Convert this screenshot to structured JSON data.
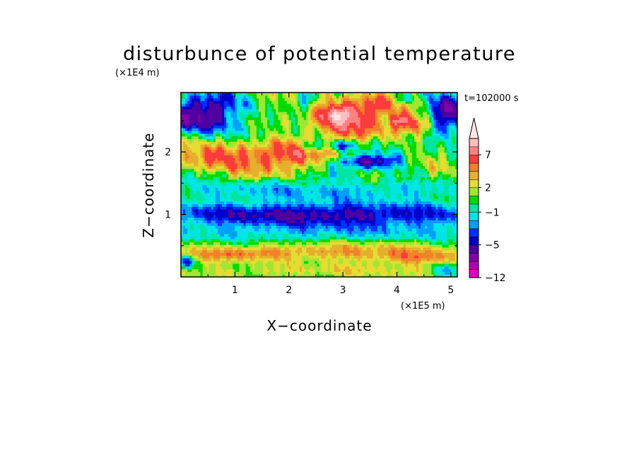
{
  "chart_data": {
    "type": "heatmap",
    "title": "disturbunce of potential temperature",
    "xlabel": "X−coordinate",
    "ylabel": "Z−coordinate",
    "x_scale_label": "(×1E5 m)",
    "y_scale_label": "(×1E4 m)",
    "time_label": "t=102000 s",
    "xlim": [
      0,
      5.12
    ],
    "ylim": [
      0,
      2.95
    ],
    "x_ticks": [
      {
        "value": 1,
        "label": "1"
      },
      {
        "value": 2,
        "label": "2"
      },
      {
        "value": 3,
        "label": "3"
      },
      {
        "value": 4,
        "label": "4"
      },
      {
        "value": 5,
        "label": "5"
      }
    ],
    "y_ticks": [
      {
        "value": 1,
        "label": "1"
      },
      {
        "value": 2,
        "label": "2"
      }
    ],
    "colorbar": {
      "min": -12,
      "max": 11,
      "extend_max": true,
      "levels": [
        -12,
        -11,
        -9,
        -7,
        -5,
        -4,
        -3,
        -2,
        -1,
        0,
        1,
        2,
        3,
        4,
        5,
        7,
        9,
        11
      ],
      "colors": [
        "#e600c8",
        "#b400b4",
        "#8200aa",
        "#5000a0",
        "#0000c8",
        "#0030ff",
        "#00a0ff",
        "#00e6e6",
        "#00e6a0",
        "#00dc00",
        "#a0e632",
        "#e6dc32",
        "#e6af2d",
        "#f08228",
        "#fa3c3c",
        "#ff8282",
        "#ffbebe"
      ],
      "extend_color": "#ffe6e6",
      "labeled_levels": [
        {
          "value": -12,
          "label": "−12"
        },
        {
          "value": -5,
          "label": "−5"
        },
        {
          "value": -1,
          "label": "−1"
        },
        {
          "value": 2,
          "label": "2"
        },
        {
          "value": 7,
          "label": "7"
        }
      ]
    },
    "field": {
      "nx": 128,
      "nz": 68,
      "background": 0.5,
      "features": [
        {
          "x": 2.95,
          "z": 2.55,
          "sx": 0.5,
          "sz": 0.22,
          "amp": 6.0
        },
        {
          "x": 2.9,
          "z": 2.6,
          "sx": 0.18,
          "sz": 0.08,
          "amp": 4.5
        },
        {
          "x": 3.5,
          "z": 2.75,
          "sx": 0.3,
          "sz": 0.18,
          "amp": 4.0
        },
        {
          "x": 4.3,
          "z": 2.45,
          "sx": 0.3,
          "sz": 0.12,
          "amp": 5.5
        },
        {
          "x": 4.05,
          "z": 2.5,
          "sx": 0.12,
          "sz": 0.06,
          "amp": 3.5
        },
        {
          "x": 1.6,
          "z": 1.95,
          "sx": 0.8,
          "sz": 0.18,
          "amp": 5.5
        },
        {
          "x": 0.35,
          "z": 1.9,
          "sx": 0.35,
          "sz": 0.15,
          "amp": 3.5
        },
        {
          "x": 4.2,
          "z": 2.85,
          "sx": 0.3,
          "sz": 0.1,
          "amp": 3.0
        },
        {
          "x": 0.45,
          "z": 2.6,
          "sx": 0.45,
          "sz": 0.22,
          "amp": -8.0
        },
        {
          "x": 4.9,
          "z": 2.65,
          "sx": 0.3,
          "sz": 0.2,
          "amp": -7.5
        },
        {
          "x": 4.15,
          "z": 2.85,
          "sx": 0.12,
          "sz": 0.08,
          "amp": -6.0
        },
        {
          "x": 2.3,
          "z": 2.85,
          "sx": 0.15,
          "sz": 0.1,
          "amp": -4.0
        },
        {
          "x": 3.4,
          "z": 1.85,
          "sx": 0.4,
          "sz": 0.08,
          "amp": -6.5
        },
        {
          "x": 3.0,
          "z": 2.1,
          "sx": 0.2,
          "sz": 0.06,
          "amp": -5.0
        },
        {
          "x": 2.4,
          "z": 2.1,
          "sx": 0.15,
          "sz": 0.06,
          "amp": -4.0
        },
        {
          "x": 2.55,
          "z": 1.0,
          "sx": 2.6,
          "sz": 0.14,
          "amp": -6.0
        },
        {
          "x": 2.55,
          "z": 1.4,
          "sx": 2.6,
          "sz": 0.12,
          "amp": -2.5
        },
        {
          "x": 2.55,
          "z": 0.7,
          "sx": 2.6,
          "sz": 0.1,
          "amp": -2.0
        },
        {
          "x": 2.8,
          "z": 0.42,
          "sx": 1.6,
          "sz": 0.1,
          "amp": 3.5
        },
        {
          "x": 0.8,
          "z": 0.35,
          "sx": 0.6,
          "sz": 0.08,
          "amp": 2.5
        },
        {
          "x": 4.5,
          "z": 0.3,
          "sx": 0.7,
          "sz": 0.08,
          "amp": 3.0
        },
        {
          "x": 2.55,
          "z": 0.1,
          "sx": 2.6,
          "sz": 0.08,
          "amp": 1.8
        },
        {
          "x": 0.1,
          "z": 0.25,
          "sx": 0.1,
          "sz": 0.06,
          "amp": -5.0
        },
        {
          "x": 4.9,
          "z": 0.1,
          "sx": 0.2,
          "sz": 0.08,
          "amp": -3.5
        }
      ],
      "waves": [
        {
          "kx": 11.0,
          "kz": 9.0,
          "amp": 1.6,
          "phase": 0.3,
          "zmin": 1.6
        },
        {
          "kx": 7.0,
          "kz": -6.0,
          "amp": 1.2,
          "phase": 1.1,
          "zmin": 1.5
        },
        {
          "kx": 17.0,
          "kz": 3.0,
          "amp": 0.9,
          "phase": 2.0,
          "zmin": 0.0
        },
        {
          "kx": 5.0,
          "kz": 14.0,
          "amp": 0.8,
          "phase": 0.7,
          "zmin": 0.0
        }
      ]
    }
  }
}
